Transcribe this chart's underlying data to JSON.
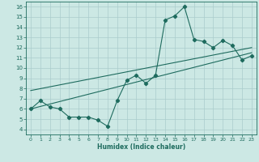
{
  "xlabel": "Humidex (Indice chaleur)",
  "xlim": [
    -0.5,
    23.5
  ],
  "ylim": [
    3.5,
    16.5
  ],
  "xticks": [
    0,
    1,
    2,
    3,
    4,
    5,
    6,
    7,
    8,
    9,
    10,
    11,
    12,
    13,
    14,
    15,
    16,
    17,
    18,
    19,
    20,
    21,
    22,
    23
  ],
  "yticks": [
    4,
    5,
    6,
    7,
    8,
    9,
    10,
    11,
    12,
    13,
    14,
    15,
    16
  ],
  "bg_color": "#cce8e4",
  "grid_color": "#aacccc",
  "line_color": "#1e6b5e",
  "line1_x": [
    0,
    1,
    2,
    3,
    4,
    5,
    6,
    7,
    8,
    9,
    10,
    11,
    12,
    13,
    14,
    15,
    16,
    17,
    18,
    19,
    20,
    21,
    22,
    23
  ],
  "line1_y": [
    6.0,
    6.8,
    6.2,
    6.0,
    5.2,
    5.2,
    5.2,
    4.9,
    4.3,
    6.8,
    8.8,
    9.3,
    8.5,
    9.3,
    14.7,
    15.1,
    16.0,
    12.8,
    12.6,
    12.0,
    12.7,
    12.2,
    10.8,
    11.2
  ],
  "line2_x": [
    0,
    23
  ],
  "line2_y": [
    6.0,
    11.5
  ],
  "line3_x": [
    0,
    23
  ],
  "line3_y": [
    7.8,
    12.0
  ]
}
